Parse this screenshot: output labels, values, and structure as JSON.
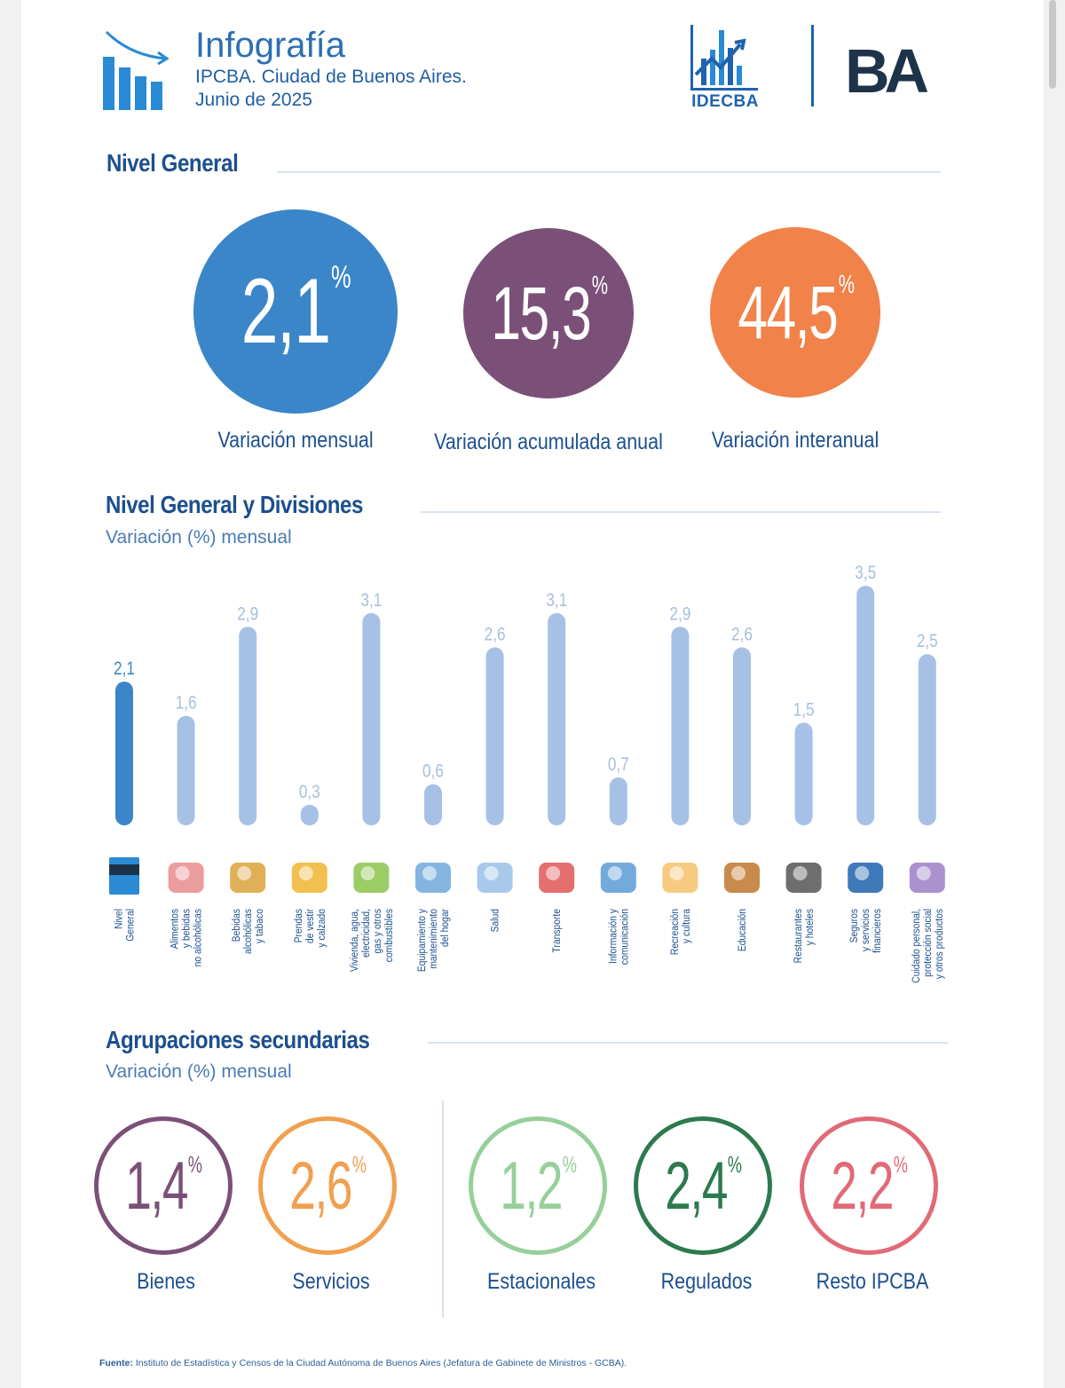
{
  "header": {
    "title": "Infografía",
    "subtitle": "IPCBA. Ciudad de Buenos Aires.",
    "period": "Junio de 2025",
    "logo_idec": "IDECBA",
    "logo_ba": "BA",
    "icons": [
      "chart-trend-icon",
      "idecba-logo",
      "ba-logo"
    ]
  },
  "nivel_general": {
    "title": "Nivel General",
    "metrics": [
      {
        "value": "2,1",
        "unit": "%",
        "label": "Variación mensual",
        "color": "#3b86c8"
      },
      {
        "value": "15,3",
        "unit": "%",
        "label": "Variación acumulada anual",
        "color": "#7b5078"
      },
      {
        "value": "44,5",
        "unit": "%",
        "label": "Variación interanual",
        "color": "#f0824a"
      }
    ]
  },
  "divisiones": {
    "title": "Nivel General y Divisiones",
    "subtitle": "Variación (%) mensual"
  },
  "chart_data": {
    "type": "bar",
    "title": "Nivel General y Divisiones",
    "ylabel": "Variación (%) mensual",
    "ylim": [
      0,
      3.5
    ],
    "categories": [
      "Nivel General",
      "Alimentos y bebidas no alcohólicas",
      "Bebidas alcohólicas y tabaco",
      "Prendas de vestir y calzado",
      "Vivienda, agua, electricidad, gas y otros combustibles",
      "Equipamiento y mantenimiento del hogar",
      "Salud",
      "Transporte",
      "Información y comunicación",
      "Recreación y cultura",
      "Educación",
      "Restaurantes y hoteles",
      "Seguros y servicios financieros",
      "Cuidado personal, protección social y otros productos"
    ],
    "label_lines": [
      [
        "Nivel",
        "General"
      ],
      [
        "Alimentos",
        "y bebidas",
        "no alcohólicas"
      ],
      [
        "Bebidas",
        "alcohólicas",
        "y tabaco"
      ],
      [
        "Prendas",
        "de vestir",
        "y calzado"
      ],
      [
        "Vivienda, agua,",
        "electricidad,",
        "gas y otros",
        "combustibles"
      ],
      [
        "Equipamiento y",
        "mantenimiento",
        "del hogar"
      ],
      [
        "Salud"
      ],
      [
        "Transporte"
      ],
      [
        "Información y",
        "comunicación"
      ],
      [
        "Recreación",
        "y cultura"
      ],
      [
        "Educación"
      ],
      [
        "Restaurantes",
        "y hoteles"
      ],
      [
        "Seguros",
        "y servicios",
        "financieros"
      ],
      [
        "Cuidado personal,",
        "protección social",
        "y otros productos"
      ]
    ],
    "values": [
      2.1,
      1.6,
      2.9,
      0.3,
      3.1,
      0.6,
      2.6,
      3.1,
      0.7,
      2.9,
      2.6,
      1.5,
      3.5,
      2.5
    ],
    "value_labels": [
      "2,1",
      "1,6",
      "2,9",
      "0,3",
      "3,1",
      "0,6",
      "2,6",
      "3,1",
      "0,7",
      "2,9",
      "2,6",
      "1,5",
      "3,5",
      "2,5"
    ],
    "icons": [
      "ipc-ba-icon",
      "food-icon",
      "bottles-icon",
      "jacket-icon",
      "house-icon",
      "washing-machine-icon",
      "doctor-icon",
      "transport-icon",
      "computer-icon",
      "theater-masks-icon",
      "school-icon",
      "restaurant-icon",
      "bank-icon",
      "personal-care-icon"
    ],
    "highlight_color": "#3b86c8",
    "bar_color": "#a6c1e5",
    "label_color_highlight": "#3b86c8",
    "label_color": "#a6bfdc"
  },
  "agrupaciones": {
    "title": "Agrupaciones secundarias",
    "subtitle": "Variación (%) mensual",
    "items": [
      {
        "value": "1,4",
        "unit": "%",
        "label": "Bienes",
        "color": "#7b5078"
      },
      {
        "value": "2,6",
        "unit": "%",
        "label": "Servicios",
        "color": "#f0a050"
      },
      {
        "value": "1,2",
        "unit": "%",
        "label": "Estacionales",
        "color": "#96cf9a"
      },
      {
        "value": "2,4",
        "unit": "%",
        "label": "Regulados",
        "color": "#2c7a4e"
      },
      {
        "value": "2,2",
        "unit": "%",
        "label": "Resto IPCBA",
        "color": "#e16a76"
      }
    ]
  },
  "footer": {
    "label": "Fuente:",
    "text": "Instituto de Estadística y Censos de la Ciudad Autónoma de Buenos Aires (Jefatura de Gabinete de Ministros - GCBA)."
  }
}
